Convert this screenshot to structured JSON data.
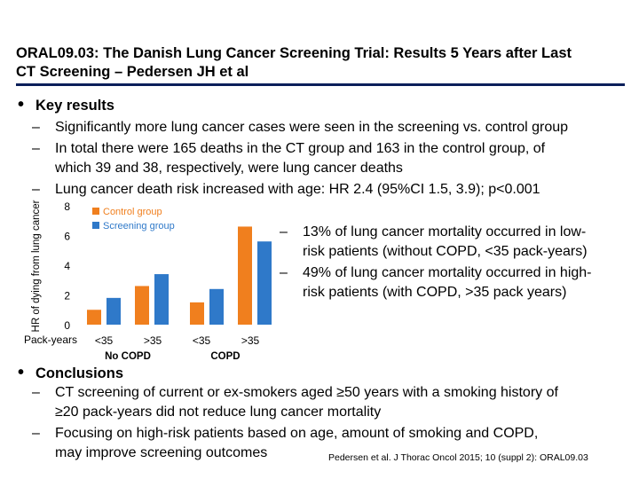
{
  "header": {
    "title_line1": "ORAL09.03: The Danish Lung Cancer Screening Trial: Results 5 Years after Last",
    "title_line2": "CT Screening – Pedersen JH et al"
  },
  "key_results": {
    "heading": "Key results",
    "items": [
      "Significantly more lung cancer cases were seen in the screening vs. control group",
      "In total there were 165 deaths in the CT group and 163 in the control group, of",
      "which 39 and 38, respectively, were lung cancer deaths",
      "Lung cancer death risk increased with age: HR 2.4 (95%CI 1.5, 3.9); p<0.001"
    ]
  },
  "side_notes": {
    "note1_line1": "13% of lung cancer mortality occurred in low-",
    "note1_line2": "risk patients (without COPD, <35 pack-years)",
    "note2_line1": "49% of lung cancer mortality occurred in high-",
    "note2_line2": "risk patients (with COPD, >35 pack years)"
  },
  "conclusions": {
    "heading": "Conclusions",
    "items": [
      "CT screening of current or ex-smokers aged ≥50 years with a smoking history of",
      "≥20 pack-years did not reduce lung cancer mortality",
      "Focusing on high-risk patients based on age, amount of smoking and COPD,",
      "may improve screening outcomes"
    ]
  },
  "citation": "Pedersen et al. J Thorac Oncol 2015; 10 (suppl 2): ORAL09.03",
  "colors": {
    "control": "#f07f1e",
    "screening": "#2f79c9",
    "title_rule": "#0b1f5a"
  },
  "chart_data": {
    "type": "bar",
    "ylabel": "HR of dying from lung cancer",
    "xlabel_prefix": "Pack-years",
    "ylim": [
      0,
      8
    ],
    "yticks": [
      "0",
      "2",
      "4",
      "6",
      "8"
    ],
    "categories": [
      "<35",
      ">35",
      "<35",
      ">35"
    ],
    "groups": [
      {
        "label": "No COPD",
        "categories": [
          "<35",
          ">35"
        ]
      },
      {
        "label": "COPD",
        "categories": [
          "<35",
          ">35"
        ]
      }
    ],
    "series": [
      {
        "name": "Control group",
        "values": [
          1.0,
          2.6,
          1.5,
          6.6
        ]
      },
      {
        "name": "Screening group",
        "values": [
          1.8,
          3.4,
          2.4,
          5.6
        ]
      }
    ]
  }
}
